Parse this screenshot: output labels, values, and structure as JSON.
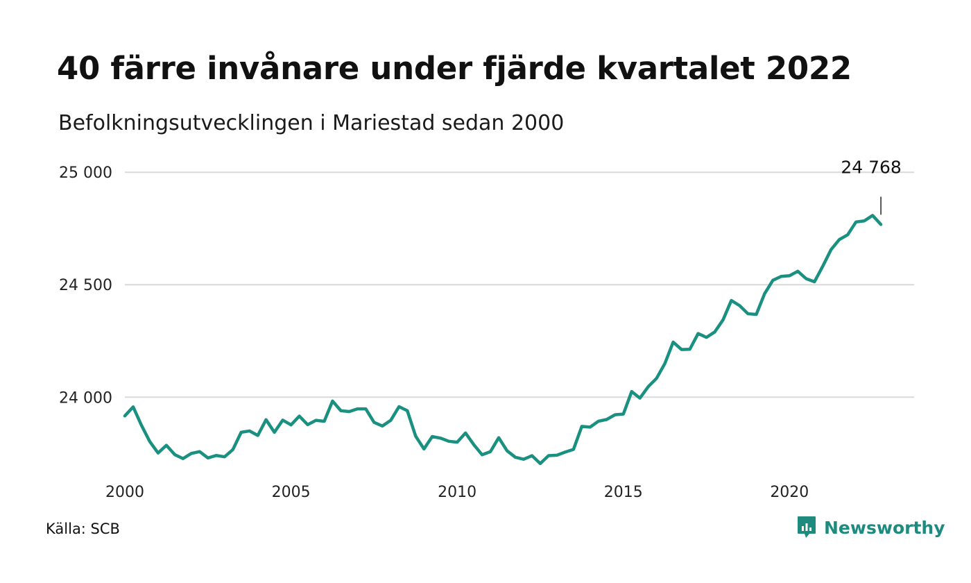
{
  "header": {
    "title": "40 färre invånare under fjärde kvartalet 2022",
    "subtitle": "Befolkningsutvecklingen i Mariestad sedan 2000"
  },
  "footer": {
    "source": "Källa: SCB",
    "brand": "Newsworthy",
    "brand_icon": "newsworthy-logo-icon"
  },
  "colors": {
    "line": "#1a9080",
    "grid": "#d9d9d9",
    "brand": "#1f8a7e"
  },
  "chart_data": {
    "type": "line",
    "title": "40 färre invånare under fjärde kvartalet 2022",
    "subtitle": "Befolkningsutvecklingen i Mariestad sedan 2000",
    "xlabel": "",
    "ylabel": "",
    "xlim": [
      2000,
      2023.75
    ],
    "ylim": [
      23680,
      25050
    ],
    "x_ticks": [
      2000,
      2005,
      2010,
      2015,
      2020
    ],
    "x_tick_labels": [
      "2000",
      "2005",
      "2010",
      "2015",
      "2020"
    ],
    "y_ticks": [
      24000,
      24500,
      25000
    ],
    "y_tick_labels": [
      "24 000",
      "24 500",
      "25 000"
    ],
    "grid": "horizontal",
    "end_label": "24 768",
    "series": [
      {
        "x": [
          2000,
          2000.25,
          2000.5,
          2000.75,
          2001,
          2001.25,
          2001.5,
          2001.75,
          2002,
          2002.25,
          2002.5,
          2002.75,
          2003,
          2003.25,
          2003.5,
          2003.75,
          2004,
          2004.25,
          2004.5,
          2004.75,
          2005,
          2005.25,
          2005.5,
          2005.75,
          2006,
          2006.25,
          2006.5,
          2006.75,
          2007,
          2007.25,
          2007.5,
          2007.75,
          2008,
          2008.25,
          2008.5,
          2008.75,
          2009,
          2009.25,
          2009.5,
          2009.75,
          2010,
          2010.25,
          2010.5,
          2010.75,
          2011,
          2011.25,
          2011.5,
          2011.75,
          2012,
          2012.25,
          2012.5,
          2012.75,
          2013,
          2013.25,
          2013.5,
          2013.75,
          2014,
          2014.25,
          2014.5,
          2014.75,
          2015,
          2015.25,
          2015.5,
          2015.75,
          2016,
          2016.25,
          2016.5,
          2016.75,
          2017,
          2017.25,
          2017.5,
          2017.75,
          2018,
          2018.25,
          2018.5,
          2018.75,
          2019,
          2019.25,
          2019.5,
          2019.75,
          2020,
          2020.25,
          2020.5,
          2020.75,
          2021,
          2021.25,
          2021.5,
          2021.75,
          2022,
          2022.25,
          2022.5,
          2022.75
        ],
        "values": [
          23917,
          23957,
          23875,
          23803,
          23752,
          23786,
          23745,
          23727,
          23750,
          23758,
          23730,
          23741,
          23735,
          23767,
          23844,
          23850,
          23830,
          23900,
          23844,
          23898,
          23877,
          23916,
          23878,
          23897,
          23893,
          23983,
          23940,
          23936,
          23948,
          23948,
          23888,
          23872,
          23897,
          23958,
          23940,
          23827,
          23770,
          23825,
          23818,
          23804,
          23800,
          23841,
          23789,
          23744,
          23758,
          23820,
          23762,
          23733,
          23724,
          23740,
          23705,
          23740,
          23742,
          23756,
          23768,
          23870,
          23867,
          23893,
          23901,
          23922,
          23925,
          24025,
          23996,
          24047,
          24084,
          24150,
          24245,
          24212,
          24213,
          24283,
          24266,
          24290,
          24344,
          24430,
          24407,
          24371,
          24368,
          24460,
          24520,
          24537,
          24540,
          24560,
          24527,
          24513,
          24582,
          24656,
          24701,
          24722,
          24779,
          24784,
          24808,
          24768
        ]
      }
    ]
  }
}
